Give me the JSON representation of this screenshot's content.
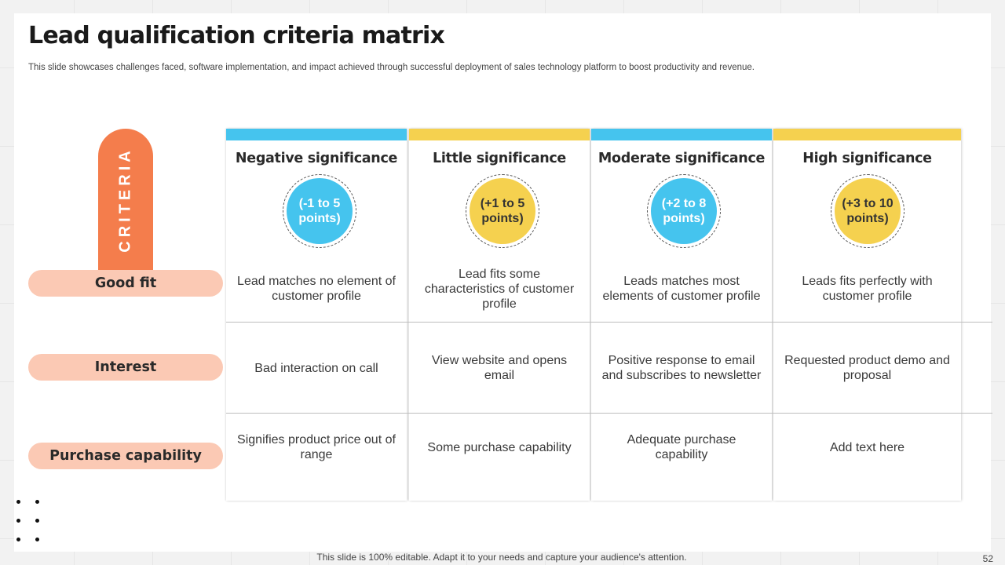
{
  "title": "Lead qualification criteria matrix",
  "subtitle": "This slide showcases challenges faced, software implementation, and impact achieved through successful deployment of sales technology platform to boost productivity and revenue.",
  "criteria_label": "CRITERIA",
  "rows": [
    "Good fit",
    "Interest",
    "Purchase capability"
  ],
  "columns": [
    {
      "title": "Negative significance",
      "points": "(-1 to 5 points)",
      "bar_color": "#45c4ee",
      "circle_color": "#45c4ee",
      "text_color": "#ffffff",
      "cells": [
        "Lead matches no element of customer profile",
        "Bad interaction on call",
        "Signifies product price out of range"
      ]
    },
    {
      "title": "Little significance",
      "points": "(+1 to 5 points)",
      "bar_color": "#f5d14f",
      "circle_color": "#f5d14f",
      "text_color": "#333333",
      "cells": [
        "Lead fits some characteristics of customer profile",
        "View website and opens email",
        "Some purchase capability"
      ]
    },
    {
      "title": "Moderate significance",
      "points": "(+2 to 8 points)",
      "bar_color": "#45c4ee",
      "circle_color": "#45c4ee",
      "text_color": "#ffffff",
      "cells": [
        "Leads matches most elements of customer profile",
        "Positive response to email and subscribes to newsletter",
        "Adequate purchase capability"
      ]
    },
    {
      "title": "High significance",
      "points": "(+3 to 10 points)",
      "bar_color": "#f5d14f",
      "circle_color": "#f5d14f",
      "text_color": "#333333",
      "cells": [
        "Leads fits perfectly with customer profile",
        "Requested product demo and proposal",
        "Add text here"
      ]
    }
  ],
  "footer": "This slide is 100% editable. Adapt it to your needs and capture your audience's attention.",
  "page_number": "52",
  "colors": {
    "criteria": "#f47d4c",
    "row_label_bg": "#fbc9b4"
  }
}
